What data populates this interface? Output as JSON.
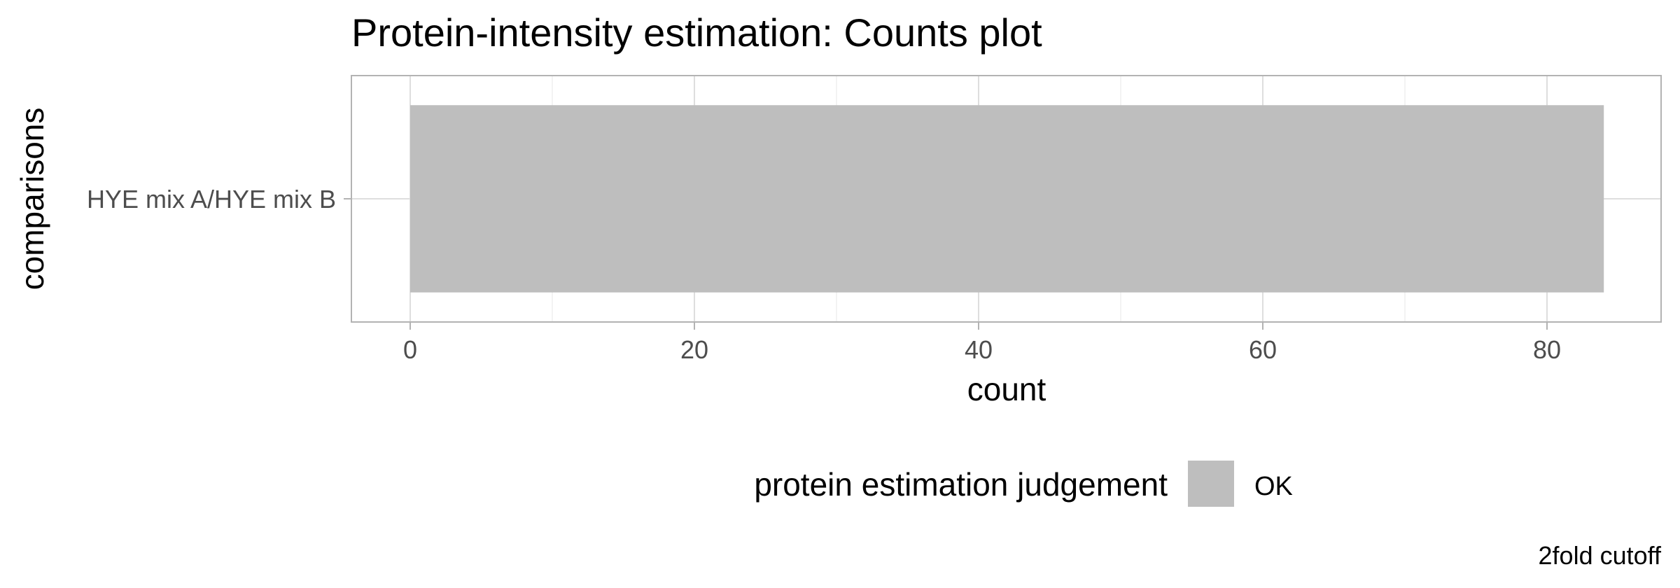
{
  "chart_data": {
    "type": "bar",
    "orientation": "horizontal",
    "title": "Protein-intensity estimation: Counts plot",
    "xlabel": "count",
    "ylabel": "comparisons",
    "categories": [
      "HYE mix A/HYE mix B"
    ],
    "series": [
      {
        "name": "OK",
        "values": [
          84
        ],
        "color": "#bebebe"
      }
    ],
    "xlim": [
      0,
      88
    ],
    "x_ticks": [
      0,
      20,
      40,
      60,
      80
    ],
    "x_tick_labels": [
      "0",
      "20",
      "40",
      "60",
      "80"
    ],
    "grid": true,
    "legend": {
      "title": "protein estimation judgement",
      "placement": "bottom",
      "entries": [
        {
          "label": "OK",
          "color": "#bebebe"
        }
      ]
    },
    "caption": "2fold cutoff"
  },
  "colors": {
    "panel_border": "#b3b3b3",
    "grid_major": "#dedede",
    "grid_minor": "#efefef",
    "tick_text": "#4d4d4d",
    "bar_fill": "#bebebe"
  }
}
